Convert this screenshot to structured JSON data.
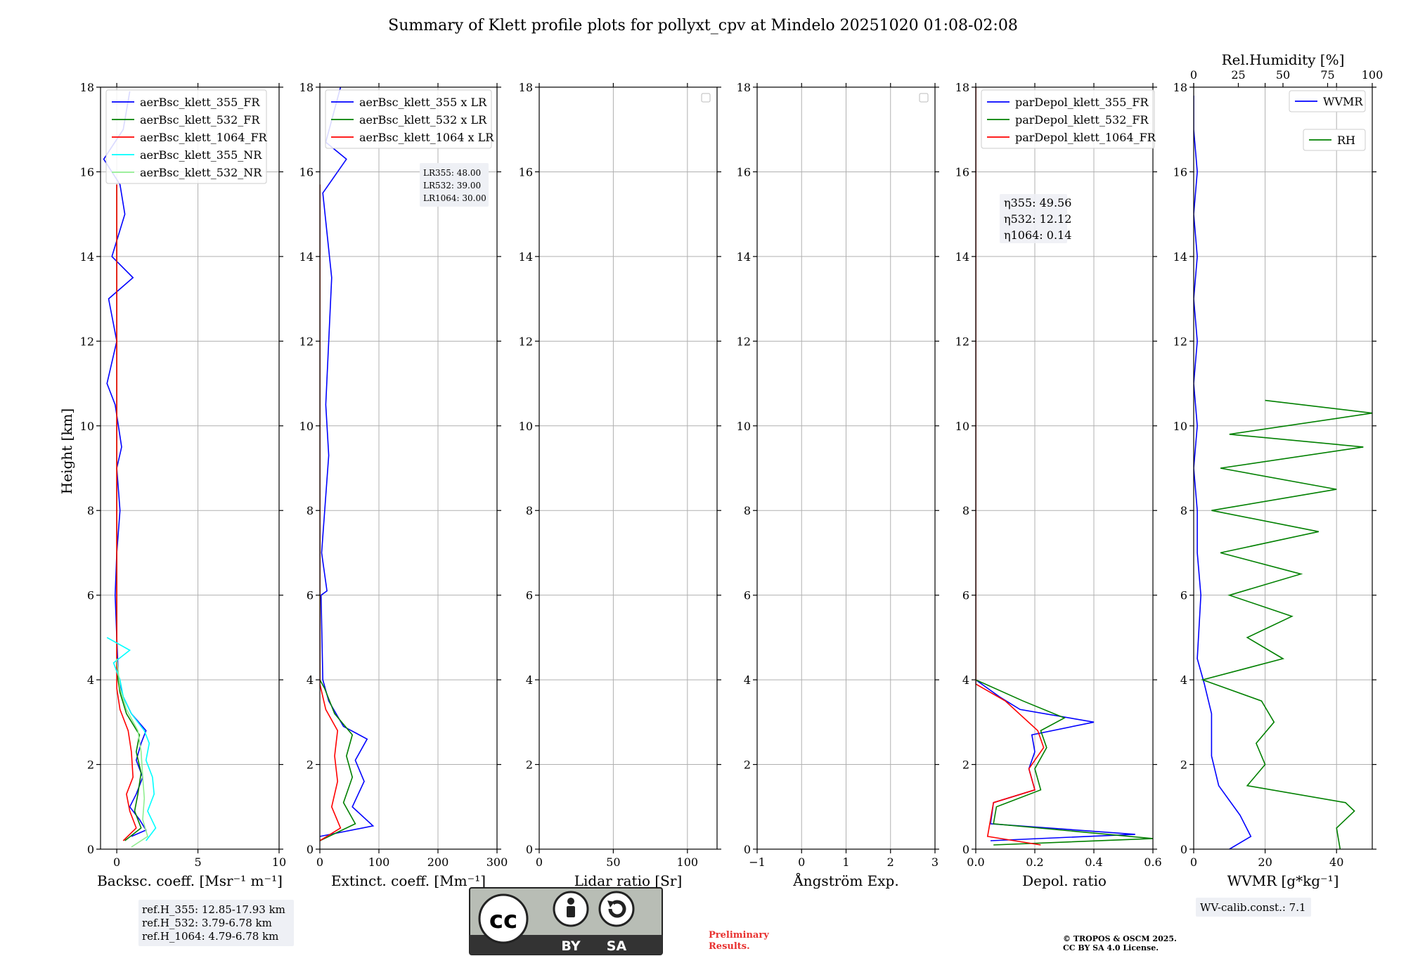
{
  "title": "Summary of Klett profile plots for pollyxt_cpv at Mindelo 20251020 01:08-02:08",
  "ylabel": "Height [km]",
  "chart_data": [
    {
      "id": "bsc",
      "type": "line",
      "xlabel": "Backsc. coeff. [Msr⁻¹ m⁻¹]",
      "xlim": [
        -1,
        10
      ],
      "xticks": [
        0,
        5,
        10
      ],
      "ylim": [
        0,
        18
      ],
      "yticks": [
        0,
        2,
        4,
        6,
        8,
        10,
        12,
        14,
        16,
        18
      ],
      "grid": true,
      "legend": "top-left",
      "series": [
        {
          "name": "aerBsc_klett_355_FR",
          "color": "#0000ff",
          "points": [
            [
              0.9,
              0.3
            ],
            [
              1.8,
              0.45
            ],
            [
              1.4,
              0.7
            ],
            [
              0.8,
              1.0
            ],
            [
              1.2,
              1.3
            ],
            [
              1.6,
              1.7
            ],
            [
              1.2,
              2.1
            ],
            [
              1.5,
              2.5
            ],
            [
              1.8,
              2.8
            ],
            [
              0.9,
              3.2
            ],
            [
              0.4,
              3.6
            ],
            [
              0.1,
              4.0
            ],
            [
              0.0,
              5.0
            ],
            [
              -0.1,
              6.0
            ],
            [
              0.0,
              7.0
            ],
            [
              0.2,
              8.0
            ],
            [
              0.0,
              9.0
            ],
            [
              0.3,
              9.5
            ],
            [
              -0.1,
              10.5
            ],
            [
              -0.6,
              11.0
            ],
            [
              0.0,
              12.0
            ],
            [
              -0.5,
              13.0
            ],
            [
              1.0,
              13.5
            ],
            [
              -0.3,
              14.0
            ],
            [
              0.5,
              15.0
            ],
            [
              0.2,
              15.7
            ],
            [
              -0.8,
              16.3
            ],
            [
              0.4,
              17.0
            ],
            [
              0.8,
              17.9
            ]
          ]
        },
        {
          "name": "aerBsc_klett_532_FR",
          "color": "#008000",
          "points": [
            [
              0.5,
              0.2
            ],
            [
              1.5,
              0.5
            ],
            [
              1.1,
              0.9
            ],
            [
              1.3,
              1.3
            ],
            [
              1.5,
              1.8
            ],
            [
              1.2,
              2.3
            ],
            [
              1.4,
              2.7
            ],
            [
              0.6,
              3.2
            ],
            [
              0.2,
              3.7
            ],
            [
              0.0,
              4.2
            ],
            [
              0.0,
              6.0
            ],
            [
              0.0,
              10.0
            ],
            [
              0.0,
              14.0
            ],
            [
              0.0,
              15.7
            ]
          ]
        },
        {
          "name": "aerBsc_klett_1064_FR",
          "color": "#ff0000",
          "points": [
            [
              0.4,
              0.2
            ],
            [
              1.2,
              0.5
            ],
            [
              0.8,
              0.9
            ],
            [
              0.6,
              1.3
            ],
            [
              1.0,
              1.7
            ],
            [
              0.9,
              2.3
            ],
            [
              0.7,
              2.8
            ],
            [
              0.2,
              3.3
            ],
            [
              0.0,
              3.8
            ],
            [
              0.0,
              6.0
            ],
            [
              0.0,
              10.0
            ],
            [
              0.0,
              14.0
            ],
            [
              0.0,
              15.7
            ]
          ]
        },
        {
          "name": "aerBsc_klett_355_NR",
          "color": "#00ffff",
          "points": [
            [
              1.8,
              0.2
            ],
            [
              2.4,
              0.5
            ],
            [
              1.9,
              0.9
            ],
            [
              2.3,
              1.3
            ],
            [
              2.2,
              1.7
            ],
            [
              1.8,
              2.1
            ],
            [
              2.0,
              2.5
            ],
            [
              1.7,
              2.8
            ],
            [
              0.9,
              3.2
            ],
            [
              0.4,
              3.6
            ],
            [
              0.2,
              4.0
            ],
            [
              -0.2,
              4.4
            ],
            [
              0.8,
              4.7
            ],
            [
              -0.6,
              5.0
            ]
          ]
        },
        {
          "name": "aerBsc_klett_532_NR",
          "color": "#90ee90",
          "points": [
            [
              0.9,
              0.05
            ],
            [
              1.9,
              0.3
            ],
            [
              1.6,
              0.7
            ],
            [
              1.7,
              1.2
            ],
            [
              1.6,
              1.7
            ],
            [
              1.5,
              2.3
            ],
            [
              1.3,
              2.8
            ],
            [
              0.6,
              3.3
            ],
            [
              0.2,
              3.8
            ],
            [
              0.0,
              4.5
            ]
          ]
        }
      ],
      "annotation": [
        "ref.H_355: 12.85-17.93 km",
        "ref.H_532: 3.79-6.78 km",
        "ref.H_1064: 4.79-6.78 km"
      ]
    },
    {
      "id": "ext",
      "type": "line",
      "xlabel": "Extinct. coeff. [Mm⁻¹]",
      "xlim": [
        0,
        300
      ],
      "xticks": [
        0,
        100,
        200,
        300
      ],
      "ylim": [
        0,
        18
      ],
      "grid": true,
      "legend": "top-right",
      "series": [
        {
          "name": "aerBsc_klett_355 x LR",
          "color": "#0000ff",
          "points": [
            [
              0,
              0.3
            ],
            [
              90,
              0.55
            ],
            [
              55,
              1.0
            ],
            [
              75,
              1.6
            ],
            [
              60,
              2.1
            ],
            [
              80,
              2.6
            ],
            [
              40,
              2.9
            ],
            [
              15,
              3.5
            ],
            [
              5,
              4.0
            ],
            [
              2,
              6.0
            ],
            [
              12,
              6.1
            ],
            [
              3,
              7.0
            ],
            [
              15,
              9.3
            ],
            [
              10,
              10.5
            ],
            [
              20,
              13.5
            ],
            [
              5,
              15.5
            ],
            [
              45,
              16.3
            ],
            [
              10,
              16.7
            ],
            [
              35,
              18.0
            ]
          ]
        },
        {
          "name": "aerBsc_klett_532 x LR",
          "color": "#008000",
          "points": [
            [
              0,
              0.2
            ],
            [
              60,
              0.6
            ],
            [
              40,
              1.1
            ],
            [
              55,
              1.7
            ],
            [
              45,
              2.2
            ],
            [
              55,
              2.7
            ],
            [
              25,
              3.2
            ],
            [
              8,
              3.8
            ],
            [
              0,
              4.0
            ],
            [
              0,
              15.7
            ]
          ]
        },
        {
          "name": "aerBsc_klett_1064 x LR",
          "color": "#ff0000",
          "points": [
            [
              0,
              0.2
            ],
            [
              35,
              0.5
            ],
            [
              20,
              1.0
            ],
            [
              30,
              1.6
            ],
            [
              25,
              2.2
            ],
            [
              30,
              2.8
            ],
            [
              10,
              3.3
            ],
            [
              0,
              3.9
            ],
            [
              0,
              15.7
            ]
          ]
        }
      ],
      "annotation": [
        "LR355: 48.00",
        "LR532: 39.00",
        "LR1064: 30.00"
      ]
    },
    {
      "id": "lr",
      "type": "line",
      "xlabel": "Lidar ratio [Sr]",
      "xlim": [
        0,
        120
      ],
      "xticks": [
        0,
        50,
        100
      ],
      "ylim": [
        0,
        18
      ],
      "grid": true,
      "legend": "top-right",
      "series": []
    },
    {
      "id": "ang",
      "type": "line",
      "xlabel": "Ångström Exp.",
      "xlim": [
        -1,
        3
      ],
      "xticks": [
        -1,
        0,
        1,
        2,
        3
      ],
      "ylim": [
        0,
        18
      ],
      "grid": true,
      "legend": "top-right",
      "series": []
    },
    {
      "id": "depol",
      "type": "line",
      "xlabel": "Depol. ratio",
      "xlim": [
        0,
        0.6
      ],
      "xticks": [
        0.0,
        0.2,
        0.4,
        0.6
      ],
      "ylim": [
        0,
        18
      ],
      "grid": true,
      "legend": "top-left",
      "series": [
        {
          "name": "parDepol_klett_355_FR",
          "color": "#0000ff",
          "points": [
            [
              0.05,
              0.2
            ],
            [
              0.54,
              0.35
            ],
            [
              0.05,
              0.6
            ],
            [
              0.06,
              1.1
            ],
            [
              0.2,
              1.4
            ],
            [
              0.18,
              1.9
            ],
            [
              0.2,
              2.3
            ],
            [
              0.19,
              2.7
            ],
            [
              0.4,
              3.0
            ],
            [
              0.15,
              3.3
            ],
            [
              0.08,
              3.6
            ],
            [
              0.0,
              4.0
            ],
            [
              0.0,
              18.0
            ]
          ]
        },
        {
          "name": "parDepol_klett_532_FR",
          "color": "#008000",
          "points": [
            [
              0.06,
              0.1
            ],
            [
              0.6,
              0.25
            ],
            [
              0.06,
              0.6
            ],
            [
              0.07,
              1.0
            ],
            [
              0.22,
              1.4
            ],
            [
              0.2,
              1.9
            ],
            [
              0.24,
              2.4
            ],
            [
              0.22,
              2.8
            ],
            [
              0.3,
              3.1
            ],
            [
              0.16,
              3.5
            ],
            [
              0.0,
              4.0
            ],
            [
              0.0,
              18.0
            ]
          ]
        },
        {
          "name": "parDepol_klett_1064_FR",
          "color": "#ff0000",
          "points": [
            [
              0.22,
              0.1
            ],
            [
              0.04,
              0.3
            ],
            [
              0.05,
              0.7
            ],
            [
              0.06,
              1.1
            ],
            [
              0.2,
              1.4
            ],
            [
              0.18,
              1.9
            ],
            [
              0.23,
              2.4
            ],
            [
              0.21,
              2.8
            ],
            [
              0.1,
              3.5
            ],
            [
              0.0,
              3.9
            ],
            [
              0.0,
              18.0
            ]
          ]
        }
      ],
      "annotation": [
        "η355: 49.56",
        "η532: 12.12",
        "η1064: 0.14"
      ]
    },
    {
      "id": "wv",
      "type": "line",
      "xlabel": "WVMR [g*kg⁻¹]",
      "xlim": [
        0,
        50
      ],
      "xticks": [
        0,
        20,
        40
      ],
      "xlabel_top": "Rel.Humidity [%]",
      "xlim_top": [
        0,
        100
      ],
      "xticks_top": [
        0,
        25,
        50,
        75,
        100
      ],
      "ylim": [
        0,
        18
      ],
      "grid": true,
      "legend": "top-right",
      "series": [
        {
          "name": "WVMR",
          "color": "#0000ff",
          "axis": "bottom",
          "points": [
            [
              10,
              0.0
            ],
            [
              16,
              0.3
            ],
            [
              13,
              0.8
            ],
            [
              7,
              1.5
            ],
            [
              5,
              2.2
            ],
            [
              5,
              3.2
            ],
            [
              3,
              3.9
            ],
            [
              1,
              4.5
            ],
            [
              2,
              6.0
            ],
            [
              1,
              7.0
            ],
            [
              1,
              8.0
            ],
            [
              0,
              9.0
            ],
            [
              1,
              10.0
            ],
            [
              0,
              11.0
            ],
            [
              1,
              12.0
            ],
            [
              0,
              13.0
            ],
            [
              1,
              14.0
            ],
            [
              0,
              15.0
            ],
            [
              1,
              16.0
            ],
            [
              0,
              17.0
            ],
            [
              0,
              17.8
            ]
          ]
        },
        {
          "name": "RH",
          "color": "#008000",
          "axis": "top",
          "points": [
            [
              82,
              0.0
            ],
            [
              80,
              0.5
            ],
            [
              90,
              0.9
            ],
            [
              85,
              1.1
            ],
            [
              30,
              1.5
            ],
            [
              40,
              2.0
            ],
            [
              35,
              2.5
            ],
            [
              45,
              3.0
            ],
            [
              38,
              3.5
            ],
            [
              5,
              4.0
            ],
            [
              50,
              4.5
            ],
            [
              30,
              5.0
            ],
            [
              55,
              5.5
            ],
            [
              20,
              6.0
            ],
            [
              60,
              6.5
            ],
            [
              15,
              7.0
            ],
            [
              70,
              7.5
            ],
            [
              10,
              8.0
            ],
            [
              80,
              8.5
            ],
            [
              15,
              9.0
            ],
            [
              95,
              9.5
            ],
            [
              20,
              9.8
            ],
            [
              100,
              10.3
            ],
            [
              40,
              10.6
            ]
          ]
        }
      ],
      "annotation": [
        "WV-calib.const.: 7.1"
      ]
    }
  ],
  "footer": {
    "license_badge": [
      "BY",
      "SA"
    ],
    "preliminary": [
      "Preliminary",
      "Results."
    ],
    "copyright": [
      "© TROPOS & OSCM 2025.",
      "CC BY SA 4.0 License."
    ]
  }
}
